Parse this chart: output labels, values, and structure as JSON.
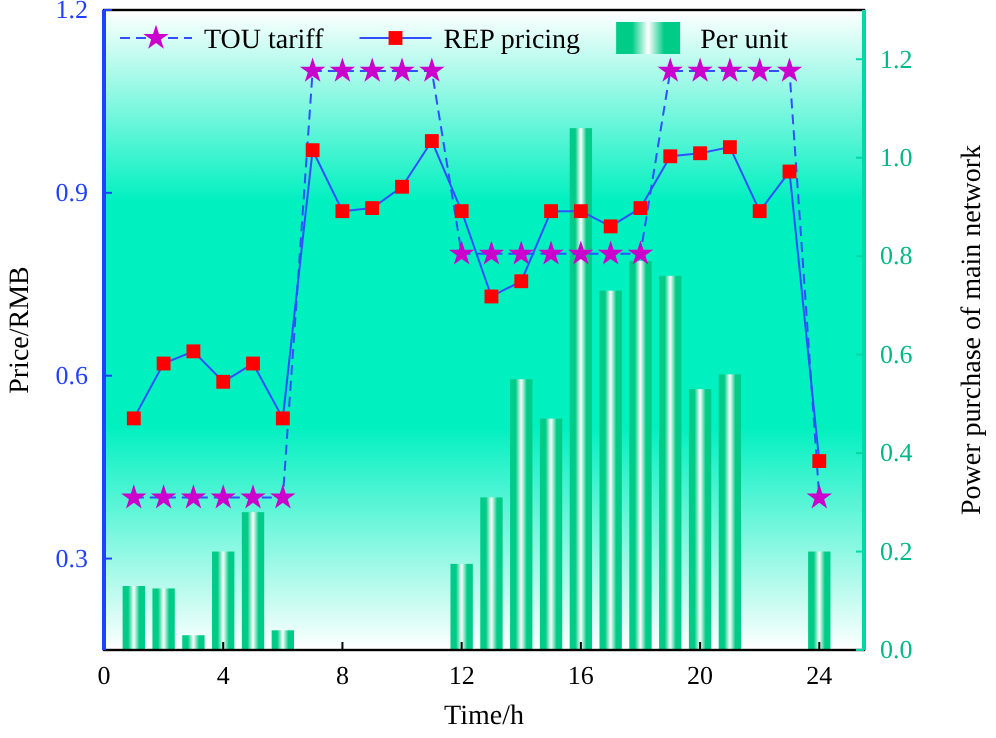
{
  "chart_data": {
    "type": "line",
    "xlabel": "Time/h",
    "ylabel": "Price/RMB",
    "y2label": "Power purchase of main network",
    "x": [
      1,
      2,
      3,
      4,
      5,
      6,
      7,
      8,
      9,
      10,
      11,
      12,
      13,
      14,
      15,
      16,
      17,
      18,
      19,
      20,
      21,
      22,
      23,
      24
    ],
    "xlim": [
      0,
      25.5
    ],
    "xticks": [
      0,
      4,
      8,
      12,
      16,
      20,
      24
    ],
    "ylim": [
      0.15,
      1.2
    ],
    "yticks": [
      0.3,
      0.6,
      0.9,
      1.2
    ],
    "y2lim": [
      0,
      1.3
    ],
    "y2ticks": [
      {
        "value": 0,
        "label": "0.0"
      },
      0.2,
      0.4,
      0.6,
      0.8,
      {
        "value": 1,
        "label": "1.0"
      },
      1.2
    ],
    "legend": "top",
    "series": [
      {
        "name": "TOU tariff",
        "color": "#cc00cc",
        "marker": "star",
        "line_style": "dashed",
        "values": [
          0.4,
          0.4,
          0.4,
          0.4,
          0.4,
          0.4,
          1.1,
          1.1,
          1.1,
          1.1,
          1.1,
          0.8,
          0.8,
          0.8,
          0.8,
          0.8,
          0.8,
          0.8,
          1.1,
          1.1,
          1.1,
          1.1,
          1.1,
          0.4
        ]
      },
      {
        "name": "REP pricing",
        "color": "#ff0000",
        "marker": "square",
        "line_style": "solid",
        "values": [
          0.53,
          0.62,
          0.64,
          0.59,
          0.62,
          0.53,
          0.97,
          0.87,
          0.875,
          0.91,
          0.985,
          0.87,
          0.73,
          0.755,
          0.87,
          0.87,
          0.845,
          0.875,
          0.96,
          0.965,
          0.975,
          0.87,
          0.935,
          0.46
        ]
      },
      {
        "name": "Per unit",
        "type": "bar",
        "axis": "y2",
        "color": "#00cc88",
        "values": [
          0.13,
          0.125,
          0.03,
          0.2,
          0.28,
          0.04,
          0,
          0,
          0,
          0,
          0,
          0.175,
          0.31,
          0.55,
          0.47,
          1.06,
          0.73,
          0.79,
          0.76,
          0.53,
          0.56,
          0,
          0,
          0.2
        ]
      }
    ]
  }
}
